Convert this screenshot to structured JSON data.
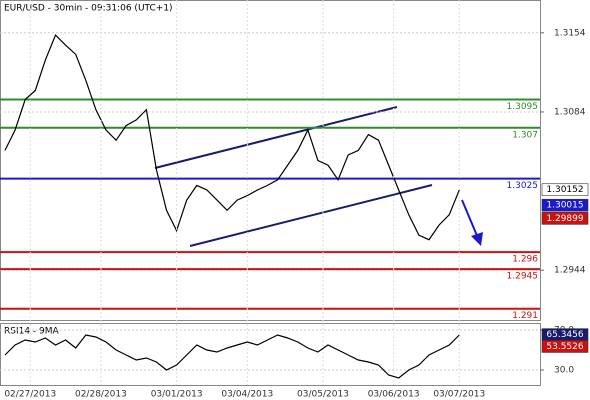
{
  "chart_data": [
    {
      "type": "line",
      "title": "EUR/USD - 30min - 09:31:06 (UTC+1)",
      "x": [
        0,
        1,
        2,
        3,
        4,
        5,
        6,
        7,
        8,
        9,
        10,
        11,
        12,
        13,
        14,
        15,
        16,
        17,
        18,
        19,
        20,
        21,
        22,
        23,
        24,
        25,
        26,
        27,
        28,
        29,
        30,
        31,
        32,
        33,
        34,
        35,
        36,
        37,
        38,
        39,
        40,
        41,
        42,
        43,
        44,
        45
      ],
      "values": [
        1.305,
        1.3068,
        1.3095,
        1.3103,
        1.313,
        1.3152,
        1.3143,
        1.3135,
        1.3112,
        1.3086,
        1.3068,
        1.3059,
        1.3072,
        1.3077,
        1.3086,
        1.3033,
        1.2997,
        1.2979,
        1.3006,
        1.3019,
        1.3015,
        1.3006,
        1.2997,
        1.3006,
        1.301,
        1.3015,
        1.3019,
        1.3024,
        1.3037,
        1.305,
        1.3068,
        1.3041,
        1.3037,
        1.3024,
        1.3046,
        1.305,
        1.3064,
        1.3059,
        1.3037,
        1.3015,
        1.2993,
        1.2975,
        1.2971,
        1.2984,
        1.2993,
        1.3015
      ],
      "color": "#000000",
      "xlim": [
        -0.5,
        53
      ],
      "ylim": [
        1.29,
        1.3183
      ],
      "yticks": [
        1.3154,
        1.3084,
        1.2944
      ],
      "levels": [
        {
          "value": 1.3095,
          "color": "#2e8b2e"
        },
        {
          "value": 1.307,
          "color": "#2e8b2e"
        },
        {
          "value": 1.3025,
          "color": "#1a1acc"
        },
        {
          "value": 1.296,
          "color": "#cc1111"
        },
        {
          "value": 1.2945,
          "color": "#cc1111"
        },
        {
          "value": 1.291,
          "color": "#cc1111"
        }
      ],
      "price_markers": [
        {
          "value": 1.30152,
          "color": "#ffffff",
          "text_color": "#000000"
        },
        {
          "value": 1.30015,
          "color": "#1a1acc",
          "text_color": "#ffffff"
        },
        {
          "value": 1.29899,
          "color": "#cc1111",
          "text_color": "#ffffff"
        }
      ]
    },
    {
      "type": "line",
      "title": "RSI14 - 9MA",
      "x": [
        0,
        1,
        2,
        3,
        4,
        5,
        6,
        7,
        8,
        9,
        10,
        11,
        12,
        13,
        14,
        15,
        16,
        17,
        18,
        19,
        20,
        21,
        22,
        23,
        24,
        25,
        26,
        27,
        28,
        29,
        30,
        31,
        32,
        33,
        34,
        35,
        36,
        37,
        38,
        39,
        40,
        41,
        42,
        43,
        44,
        45
      ],
      "values": [
        45,
        55,
        60,
        58,
        62,
        55,
        60,
        52,
        65,
        63,
        58,
        50,
        45,
        40,
        42,
        38,
        30,
        35,
        45,
        55,
        50,
        48,
        52,
        55,
        58,
        55,
        60,
        65,
        62,
        58,
        52,
        48,
        55,
        50,
        45,
        40,
        38,
        35,
        25,
        22,
        30,
        35,
        45,
        50,
        55,
        65
      ],
      "color": "#000000",
      "xlim": [
        -0.5,
        53
      ],
      "ylim": [
        15,
        77
      ],
      "yticks": [
        {
          "value": 70,
          "label": "70.0"
        },
        {
          "value": 30,
          "label": "30.0"
        }
      ],
      "xticks": [
        {
          "value": 2.5,
          "label": "02/27/2013"
        },
        {
          "value": 9.5,
          "label": "02/28/2013"
        },
        {
          "value": 17,
          "label": "03/01/2013"
        },
        {
          "value": 24,
          "label": "03/04/2013"
        },
        {
          "value": 31.5,
          "label": "03/05/2013"
        },
        {
          "value": 38.5,
          "label": "03/06/2013"
        },
        {
          "value": 45,
          "label": "03/07/2013"
        }
      ],
      "price_markers": [
        {
          "value": 65.3456,
          "color": "#1a1a6e",
          "text_color": "#ffffff"
        },
        {
          "value": 53.5526,
          "color": "#cc1111",
          "text_color": "#ffffff"
        }
      ]
    }
  ]
}
